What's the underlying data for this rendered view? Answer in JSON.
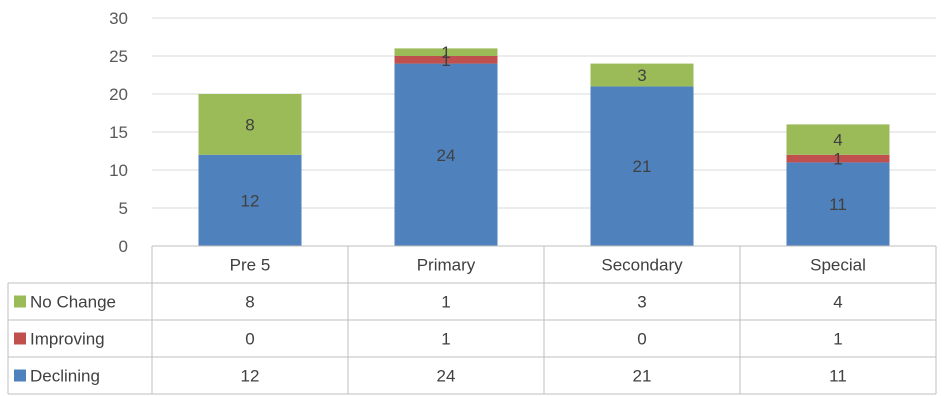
{
  "chart_data": {
    "type": "bar",
    "stacked": true,
    "categories": [
      "Pre 5",
      "Primary",
      "Secondary",
      "Special"
    ],
    "series": [
      {
        "name": "Declining",
        "values": [
          12,
          24,
          21,
          11
        ],
        "color": "#4f81bd"
      },
      {
        "name": "Improving",
        "values": [
          0,
          1,
          0,
          1
        ],
        "color": "#c0504d"
      },
      {
        "name": "No Change",
        "values": [
          8,
          1,
          3,
          4
        ],
        "color": "#9bbb59"
      }
    ],
    "table_row_order": [
      "No Change",
      "Improving",
      "Declining"
    ],
    "yticks": [
      0,
      5,
      10,
      15,
      20,
      25,
      30
    ],
    "ylim": [
      0,
      30
    ],
    "grid": true,
    "legend": "data-table"
  }
}
